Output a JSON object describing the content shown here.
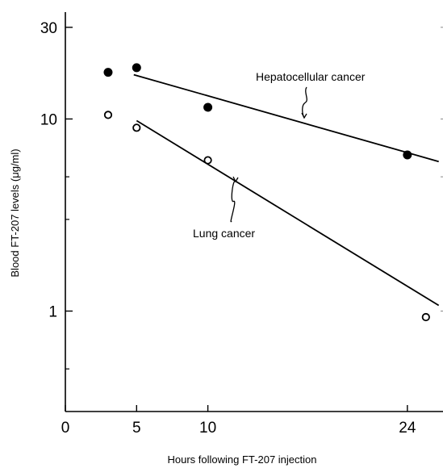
{
  "chart_data": {
    "type": "scatter",
    "xlabel": "Hours following FT-207 injection",
    "ylabel": "Blood FT-207 levels (μg/ml)",
    "xlim": [
      0,
      26.5
    ],
    "ylim": [
      0.3,
      36
    ],
    "yscale": "log",
    "xticks": [
      0,
      5,
      10,
      24
    ],
    "xtick_labels": [
      "0",
      "5",
      "10",
      "24"
    ],
    "yticks": [
      30,
      10,
      1
    ],
    "ytick_labels": [
      "30",
      "10",
      "1"
    ],
    "grid": false,
    "series": [
      {
        "name": "Hepatocellular cancer",
        "marker": "filled-circle",
        "points": [
          [
            3,
            17.5
          ],
          [
            5,
            18.5
          ],
          [
            10,
            11.5
          ],
          [
            24,
            6.5
          ]
        ],
        "fit": [
          [
            4.8,
            17
          ],
          [
            26.2,
            6.0
          ]
        ]
      },
      {
        "name": "Lung cancer",
        "marker": "open-circle",
        "points": [
          [
            3,
            10.5
          ],
          [
            5,
            9.0
          ],
          [
            10,
            6.1
          ],
          [
            25.3,
            0.93
          ]
        ],
        "fit": [
          [
            5.0,
            9.8
          ],
          [
            26.2,
            1.07
          ]
        ]
      }
    ],
    "annotations": [
      {
        "text": "Hepatocellular cancer",
        "series": 0
      },
      {
        "text": "Lung cancer",
        "series": 1
      }
    ]
  }
}
